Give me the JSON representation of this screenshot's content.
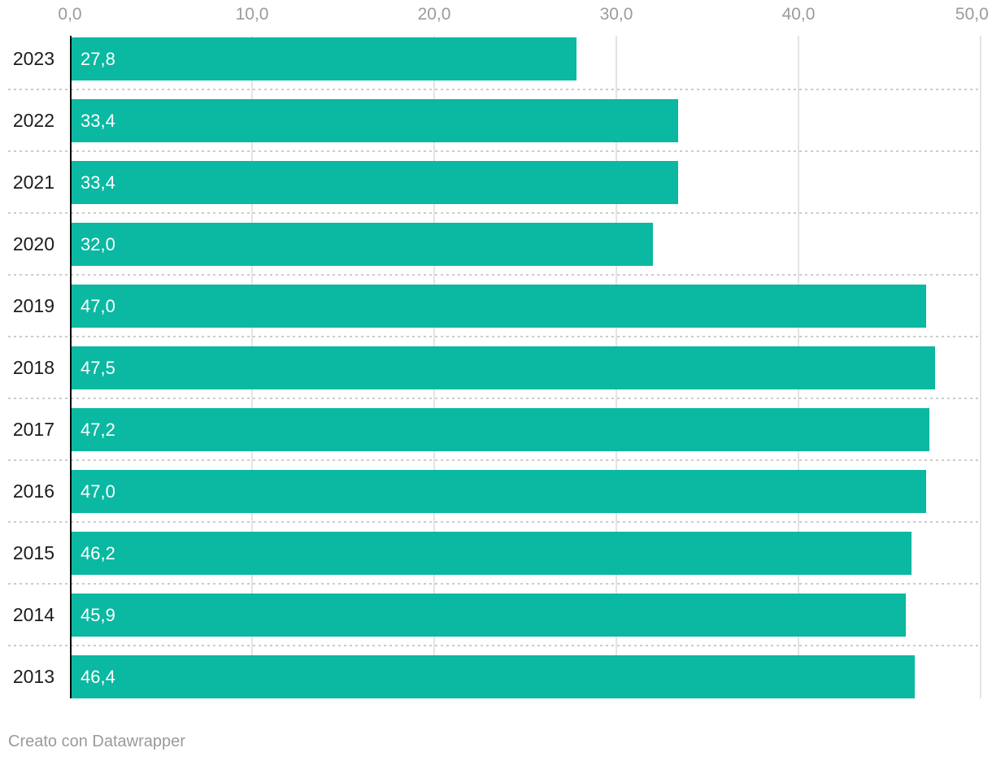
{
  "chart_data": {
    "type": "bar",
    "orientation": "horizontal",
    "title": "",
    "xlabel": "",
    "ylabel": "",
    "xlim": [
      0,
      50
    ],
    "grid": true,
    "legend": "none",
    "categories": [
      "2023",
      "2022",
      "2021",
      "2020",
      "2019",
      "2018",
      "2017",
      "2016",
      "2015",
      "2014",
      "2013"
    ],
    "values": [
      27.8,
      33.4,
      33.4,
      32.0,
      47.0,
      47.5,
      47.2,
      47.0,
      46.2,
      45.9,
      46.4
    ],
    "value_labels": [
      "27,8",
      "33,4",
      "33,4",
      "32,0",
      "47,0",
      "47,5",
      "47,2",
      "47,0",
      "46,2",
      "45,9",
      "46,4"
    ],
    "x_ticks": [
      0,
      10,
      20,
      30,
      40,
      50
    ],
    "x_tick_labels": [
      "0,0",
      "10,0",
      "20,0",
      "30,0",
      "40,0",
      "50,0"
    ]
  },
  "colors": {
    "bar": "#0bb8a1",
    "value_label": "#ffffff",
    "category_label": "#1c1c1c",
    "tick_label": "#9b9b9b",
    "gridline": "#e4e4e4",
    "separator": "#cccccc",
    "axis": "#000000",
    "footer": "#9a9a9a"
  },
  "footer": {
    "credit": "Creato con Datawrapper"
  }
}
